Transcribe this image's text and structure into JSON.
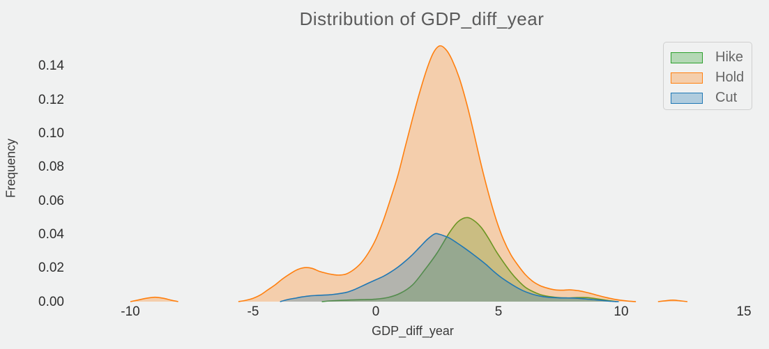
{
  "colors": {
    "background": "#f0f1f1",
    "title_text": "#5a5a5a",
    "tick_text": "#2e2e2e",
    "axis_label_text": "#3a3a3a",
    "legend_text": "#666666",
    "legend_border": "#cfcfcf"
  },
  "chart_data": {
    "type": "area",
    "subtype": "kde-density",
    "title": "Distribution of GDP_diff_year",
    "xlabel": "GDP_diff_year",
    "ylabel": "Frequency",
    "grid": false,
    "xlim": [
      -12.8,
      16.0
    ],
    "ylim": [
      0,
      0.16
    ],
    "x_ticks": [
      -10,
      -5,
      0,
      5,
      10,
      15
    ],
    "x_tick_labels": [
      "-10",
      "-5",
      "0",
      "5",
      "10",
      "15"
    ],
    "y_ticks": [
      0.0,
      0.02,
      0.04,
      0.06,
      0.08,
      0.1,
      0.12,
      0.14
    ],
    "y_tick_labels": [
      "0.00",
      "0.02",
      "0.04",
      "0.06",
      "0.08",
      "0.10",
      "0.12",
      "0.14"
    ],
    "legend_position": "upper right",
    "fill_opacity": 0.3,
    "line_width": 1.6,
    "series": [
      {
        "name": "Hike",
        "line_color": "#2ca02c",
        "segments": [
          [
            [
              -2.2,
              0
            ],
            [
              -1.9,
              0.0004
            ],
            [
              -1.5,
              0.0007
            ],
            [
              -1.0,
              0.001
            ],
            [
              -0.5,
              0.0012
            ],
            [
              0,
              0.0015
            ],
            [
              0.5,
              0.0025
            ],
            [
              1.0,
              0.005
            ],
            [
              1.5,
              0.01
            ],
            [
              2.0,
              0.019
            ],
            [
              2.5,
              0.029
            ],
            [
              3.0,
              0.041
            ],
            [
              3.35,
              0.0475
            ],
            [
              3.7,
              0.05
            ],
            [
              4.0,
              0.0482
            ],
            [
              4.3,
              0.044
            ],
            [
              4.6,
              0.0375
            ],
            [
              4.9,
              0.03
            ],
            [
              5.2,
              0.0235
            ],
            [
              5.5,
              0.0175
            ],
            [
              5.8,
              0.0125
            ],
            [
              6.1,
              0.0085
            ],
            [
              6.4,
              0.006
            ],
            [
              6.7,
              0.0042
            ],
            [
              7.0,
              0.0032
            ],
            [
              7.4,
              0.0025
            ],
            [
              7.8,
              0.0022
            ],
            [
              8.2,
              0.0024
            ],
            [
              8.6,
              0.0024
            ],
            [
              9.0,
              0.0017
            ],
            [
              9.4,
              0.0008
            ],
            [
              9.8,
              0
            ]
          ]
        ]
      },
      {
        "name": "Hold",
        "line_color": "#ff7f0e",
        "segments": [
          [
            [
              -10.0,
              0
            ],
            [
              -9.7,
              0.0009
            ],
            [
              -9.35,
              0.002
            ],
            [
              -9.0,
              0.0026
            ],
            [
              -8.65,
              0.002
            ],
            [
              -8.35,
              0.0009
            ],
            [
              -8.05,
              0
            ]
          ],
          [
            [
              -5.6,
              0
            ],
            [
              -5.3,
              0.0008
            ],
            [
              -5.0,
              0.002
            ],
            [
              -4.7,
              0.004
            ],
            [
              -4.4,
              0.007
            ],
            [
              -4.1,
              0.01
            ],
            [
              -3.8,
              0.0135
            ],
            [
              -3.5,
              0.0165
            ],
            [
              -3.2,
              0.019
            ],
            [
              -2.9,
              0.0202
            ],
            [
              -2.6,
              0.0198
            ],
            [
              -2.3,
              0.018
            ],
            [
              -2.0,
              0.0168
            ],
            [
              -1.7,
              0.016
            ],
            [
              -1.45,
              0.0158
            ],
            [
              -1.2,
              0.0165
            ],
            [
              -0.9,
              0.019
            ],
            [
              -0.6,
              0.023
            ],
            [
              -0.3,
              0.029
            ],
            [
              0,
              0.037
            ],
            [
              0.3,
              0.048
            ],
            [
              0.6,
              0.061
            ],
            [
              0.9,
              0.075
            ],
            [
              1.2,
              0.092
            ],
            [
              1.5,
              0.109
            ],
            [
              1.8,
              0.125
            ],
            [
              2.1,
              0.139
            ],
            [
              2.35,
              0.148
            ],
            [
              2.6,
              0.152
            ],
            [
              2.85,
              0.15
            ],
            [
              3.1,
              0.144
            ],
            [
              3.4,
              0.133
            ],
            [
              3.7,
              0.118
            ],
            [
              4.0,
              0.1
            ],
            [
              4.3,
              0.081
            ],
            [
              4.6,
              0.064
            ],
            [
              4.9,
              0.049
            ],
            [
              5.2,
              0.037
            ],
            [
              5.5,
              0.028
            ],
            [
              5.8,
              0.0215
            ],
            [
              6.1,
              0.016
            ],
            [
              6.4,
              0.012
            ],
            [
              6.7,
              0.0095
            ],
            [
              7.0,
              0.008
            ],
            [
              7.3,
              0.007
            ],
            [
              7.6,
              0.0068
            ],
            [
              7.9,
              0.007
            ],
            [
              8.2,
              0.0066
            ],
            [
              8.5,
              0.0058
            ],
            [
              8.8,
              0.0047
            ],
            [
              9.1,
              0.0035
            ],
            [
              9.4,
              0.0024
            ],
            [
              9.7,
              0.0015
            ],
            [
              10.0,
              0.0008
            ],
            [
              10.3,
              0.0003
            ],
            [
              10.6,
              0
            ]
          ],
          [
            [
              11.5,
              0
            ],
            [
              11.8,
              0.0005
            ],
            [
              12.1,
              0.0009
            ],
            [
              12.4,
              0.0005
            ],
            [
              12.7,
              0
            ]
          ]
        ]
      },
      {
        "name": "Cut",
        "line_color": "#1f77b4",
        "segments": [
          [
            [
              -3.9,
              0
            ],
            [
              -3.6,
              0.0012
            ],
            [
              -3.3,
              0.002
            ],
            [
              -3.0,
              0.0028
            ],
            [
              -2.7,
              0.0034
            ],
            [
              -2.4,
              0.0037
            ],
            [
              -2.1,
              0.0039
            ],
            [
              -1.8,
              0.0042
            ],
            [
              -1.5,
              0.0047
            ],
            [
              -1.2,
              0.0055
            ],
            [
              -0.9,
              0.007
            ],
            [
              -0.6,
              0.009
            ],
            [
              -0.3,
              0.011
            ],
            [
              0,
              0.013
            ],
            [
              0.3,
              0.015
            ],
            [
              0.6,
              0.0175
            ],
            [
              0.9,
              0.0205
            ],
            [
              1.2,
              0.024
            ],
            [
              1.5,
              0.028
            ],
            [
              1.8,
              0.0325
            ],
            [
              2.1,
              0.037
            ],
            [
              2.4,
              0.0403
            ],
            [
              2.6,
              0.04
            ],
            [
              2.8,
              0.039
            ],
            [
              3.0,
              0.0378
            ],
            [
              3.3,
              0.035
            ],
            [
              3.6,
              0.032
            ],
            [
              3.9,
              0.0288
            ],
            [
              4.2,
              0.0255
            ],
            [
              4.5,
              0.022
            ],
            [
              4.8,
              0.018
            ],
            [
              5.1,
              0.0145
            ],
            [
              5.4,
              0.0115
            ],
            [
              5.7,
              0.0088
            ],
            [
              6.0,
              0.0065
            ],
            [
              6.3,
              0.0048
            ],
            [
              6.6,
              0.0036
            ],
            [
              6.9,
              0.0028
            ],
            [
              7.2,
              0.0024
            ],
            [
              7.5,
              0.0022
            ],
            [
              7.8,
              0.0022
            ],
            [
              8.1,
              0.0021
            ],
            [
              8.4,
              0.0018
            ],
            [
              8.7,
              0.0014
            ],
            [
              9.0,
              0.001
            ],
            [
              9.3,
              0.0006
            ],
            [
              9.6,
              0.0002
            ],
            [
              9.9,
              0
            ]
          ]
        ]
      }
    ]
  }
}
